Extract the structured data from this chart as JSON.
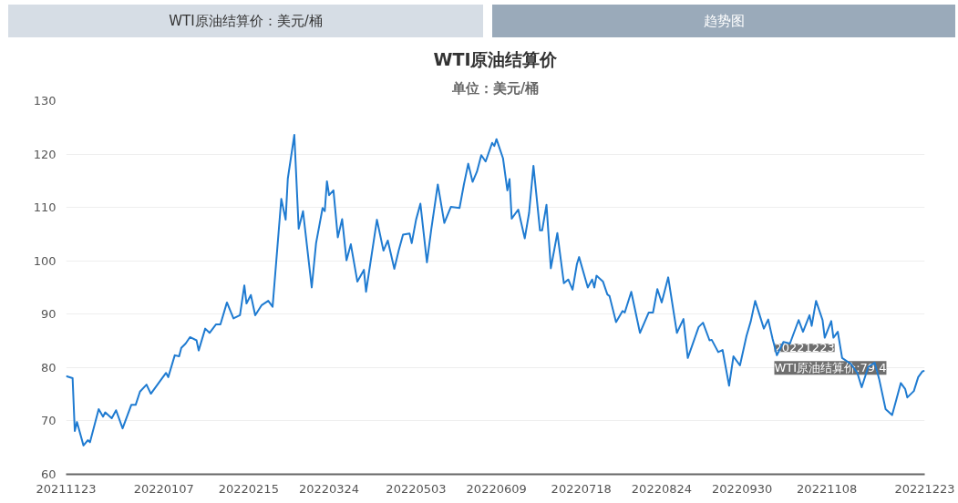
{
  "chart_data": {
    "type": "line",
    "title": "WTI原油结算价",
    "subtitle": "单位：美元/桶",
    "annotations": [
      "WTI原油结算价：美元/桶",
      "趋势图",
      "20221223",
      "WTI原油结算价:79.4"
    ],
    "series": [
      {
        "color": "#1f7bd1",
        "x": [
          "2021-11-23",
          "2021-11-26",
          "2021-11-27",
          "2021-11-28",
          "2021-12-01",
          "2021-12-03",
          "2021-12-04",
          "2021-12-08",
          "2021-12-10",
          "2021-12-11",
          "2021-12-14",
          "2021-12-16",
          "2021-12-19",
          "2021-12-23",
          "2021-12-25",
          "2021-12-27",
          "2021-12-30",
          "2022-01-01",
          "2022-01-06",
          "2022-01-08",
          "2022-01-09",
          "2022-01-12",
          "2022-01-14",
          "2022-01-15",
          "2022-01-17",
          "2022-01-19",
          "2022-01-22",
          "2022-01-23",
          "2022-01-26",
          "2022-01-28",
          "2022-01-31",
          "2022-02-02",
          "2022-02-05",
          "2022-02-08",
          "2022-02-11",
          "2022-02-13",
          "2022-02-14",
          "2022-02-16",
          "2022-02-18",
          "2022-02-21",
          "2022-02-24",
          "2022-02-26",
          "2022-03-02",
          "2022-03-04",
          "2022-03-05",
          "2022-03-08",
          "2022-03-10",
          "2022-03-12",
          "2022-03-16",
          "2022-03-18",
          "2022-03-21",
          "2022-03-22",
          "2022-03-23",
          "2022-03-24",
          "2022-03-26",
          "2022-03-28",
          "2022-03-30",
          "2022-04-01",
          "2022-04-03",
          "2022-04-06",
          "2022-04-09",
          "2022-04-10",
          "2022-04-15",
          "2022-04-18",
          "2022-04-20",
          "2022-04-23",
          "2022-04-25",
          "2022-04-27",
          "2022-04-30",
          "2022-05-01",
          "2022-05-03",
          "2022-05-05",
          "2022-05-08",
          "2022-05-10",
          "2022-05-13",
          "2022-05-16",
          "2022-05-19",
          "2022-05-23",
          "2022-05-25",
          "2022-05-27",
          "2022-05-29",
          "2022-05-31",
          "2022-06-02",
          "2022-06-04",
          "2022-06-07",
          "2022-06-08",
          "2022-06-09",
          "2022-06-12",
          "2022-06-14",
          "2022-06-15",
          "2022-06-16",
          "2022-06-19",
          "2022-06-22",
          "2022-06-24",
          "2022-06-26",
          "2022-06-29",
          "2022-06-30",
          "2022-07-02",
          "2022-07-04",
          "2022-07-07",
          "2022-07-10",
          "2022-07-12",
          "2022-07-14",
          "2022-07-16",
          "2022-07-17",
          "2022-07-21",
          "2022-07-23",
          "2022-07-24",
          "2022-07-25",
          "2022-07-28",
          "2022-07-30",
          "2022-07-31",
          "2022-08-03",
          "2022-08-06",
          "2022-08-07",
          "2022-08-10",
          "2022-08-14",
          "2022-08-18",
          "2022-08-20",
          "2022-08-22",
          "2022-08-24",
          "2022-08-27",
          "2022-08-31",
          "2022-09-03",
          "2022-09-05",
          "2022-09-10",
          "2022-09-12",
          "2022-09-15",
          "2022-09-16",
          "2022-09-19",
          "2022-09-21",
          "2022-09-24",
          "2022-09-26",
          "2022-09-29",
          "2022-10-02",
          "2022-10-04",
          "2022-10-06",
          "2022-10-10",
          "2022-10-12",
          "2022-10-14",
          "2022-10-16",
          "2022-10-19",
          "2022-10-22",
          "2022-10-26",
          "2022-10-28",
          "2022-10-31",
          "2022-11-01",
          "2022-11-03",
          "2022-11-06",
          "2022-11-07",
          "2022-11-10",
          "2022-11-11",
          "2022-11-13",
          "2022-11-15",
          "2022-11-19",
          "2022-11-22",
          "2022-11-24",
          "2022-11-27",
          "2022-11-30",
          "2022-12-02",
          "2022-12-05",
          "2022-12-08",
          "2022-12-10",
          "2022-12-12",
          "2022-12-14",
          "2022-12-15",
          "2022-12-18",
          "2022-12-20",
          "2022-12-22",
          "2022-12-23"
        ],
        "values": [
          78.4,
          78.0,
          68.1,
          69.8,
          65.4,
          66.4,
          66.0,
          72.2,
          70.8,
          71.6,
          70.5,
          72.0,
          68.6,
          73.0,
          73.0,
          75.5,
          76.8,
          75.1,
          77.9,
          79.0,
          78.2,
          82.3,
          82.1,
          83.7,
          84.5,
          85.7,
          85.1,
          83.2,
          87.3,
          86.5,
          88.1,
          88.1,
          92.2,
          89.2,
          89.8,
          95.4,
          92.0,
          93.6,
          89.8,
          91.7,
          92.5,
          91.4,
          111.6,
          107.7,
          115.4,
          123.6,
          106.0,
          109.3,
          95.0,
          103.3,
          109.9,
          109.3,
          114.9,
          112.3,
          113.2,
          104.4,
          107.8,
          100.1,
          103.1,
          96.1,
          98.3,
          94.2,
          107.7,
          101.9,
          103.8,
          98.5,
          101.9,
          104.9,
          105.1,
          103.3,
          107.7,
          110.7,
          99.7,
          105.9,
          114.3,
          107.1,
          110.1,
          109.9,
          114.3,
          118.2,
          114.8,
          116.7,
          119.8,
          118.6,
          122.1,
          121.5,
          122.8,
          119.2,
          113.2,
          115.3,
          107.9,
          109.6,
          104.2,
          109.0,
          117.8,
          105.7,
          105.7,
          110.5,
          98.6,
          105.2,
          95.8,
          96.5,
          94.6,
          99.4,
          100.7,
          95.0,
          96.5,
          95.0,
          97.2,
          96.1,
          93.7,
          93.4,
          88.5,
          90.6,
          90.3,
          94.2,
          86.5,
          90.3,
          90.3,
          94.7,
          92.2,
          96.9,
          86.5,
          89.1,
          81.8,
          87.6,
          88.4,
          85.1,
          85.2,
          82.9,
          83.3,
          76.6,
          82.1,
          80.4,
          85.9,
          88.7,
          92.5,
          87.3,
          89.0,
          85.4,
          82.3,
          84.8,
          84.5,
          88.9,
          86.7,
          89.8,
          87.8,
          92.5,
          88.9,
          85.6,
          88.7,
          85.6,
          86.7,
          81.8,
          80.7,
          79.0,
          76.3,
          80.1,
          80.9,
          77.9,
          72.2,
          71.1,
          74.1,
          77.1,
          76.0,
          74.4,
          75.6,
          78.2,
          79.3,
          79.4
        ]
      }
    ],
    "xlim": [
      "2021-11-23",
      "2022-12-23"
    ],
    "xticks": [
      {
        "value": "2021-11-23",
        "label": "20211123"
      },
      {
        "value": "2022-01-07",
        "label": "20220107"
      },
      {
        "value": "2022-02-15",
        "label": "20220215"
      },
      {
        "value": "2022-03-24",
        "label": "20220324"
      },
      {
        "value": "2022-05-03",
        "label": "20220503"
      },
      {
        "value": "2022-06-09",
        "label": "20220609"
      },
      {
        "value": "2022-07-18",
        "label": "20220718"
      },
      {
        "value": "2022-08-24",
        "label": "20220824"
      },
      {
        "value": "2022-09-30",
        "label": "20220930"
      },
      {
        "value": "2022-11-08",
        "label": "20221108"
      },
      {
        "value": "2022-12-23",
        "label": "20221223"
      }
    ],
    "ylim": [
      60,
      130
    ],
    "yticks": [
      60,
      70,
      80,
      90,
      100,
      110,
      120,
      130
    ],
    "grid": "y",
    "line_style": "solid"
  }
}
